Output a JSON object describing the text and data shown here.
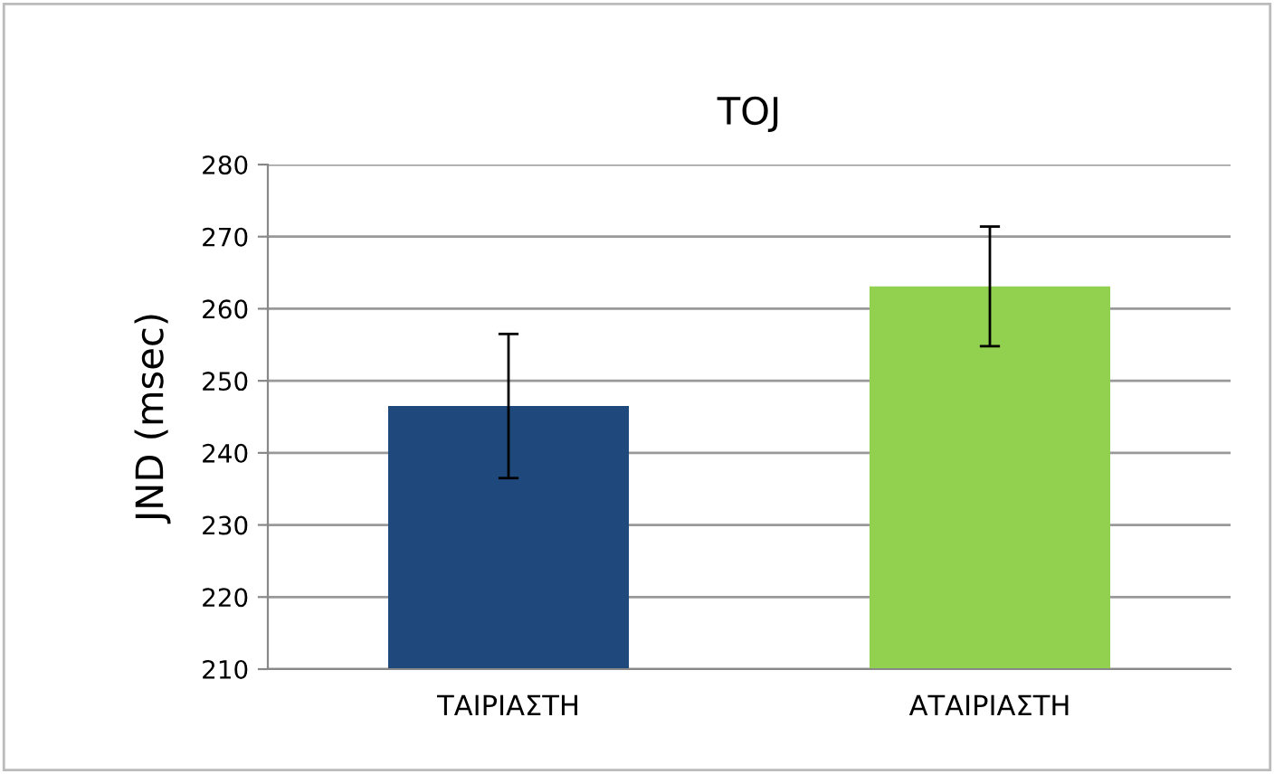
{
  "chart_data": {
    "type": "bar",
    "title": "TOJ",
    "ylabel": "JND (msec)",
    "categories": [
      "ΤΑΙΡΙΑΣΤΗ",
      "ΑΤΑΙΡΙΑΣΤΗ"
    ],
    "values": [
      246.5,
      263.1
    ],
    "errors": [
      10,
      8.3
    ],
    "colors": [
      "#1f497d",
      "#92d050"
    ],
    "ylim": [
      210,
      280
    ],
    "yticks": [
      210,
      220,
      230,
      240,
      250,
      260,
      270,
      280
    ],
    "grid": "y"
  }
}
